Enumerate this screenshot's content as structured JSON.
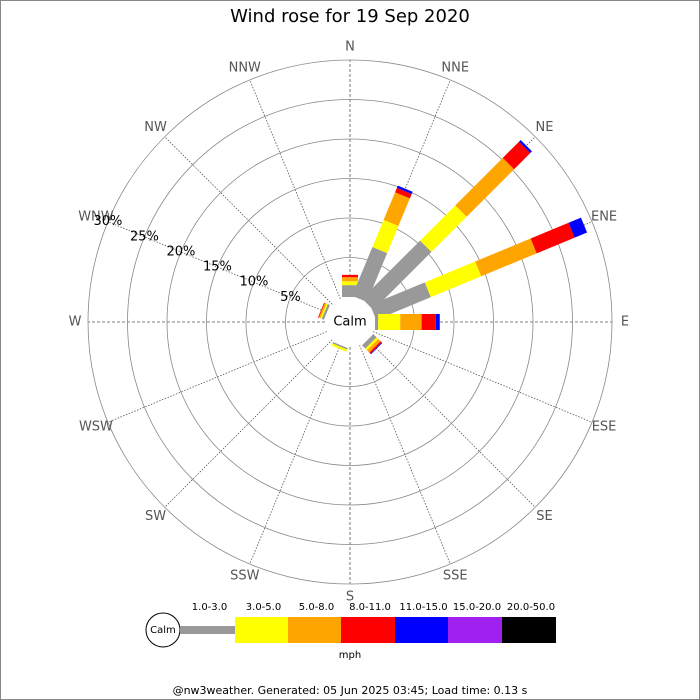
{
  "chart_data": {
    "type": "windrose",
    "title": "Wind rose for 19 Sep 2020",
    "categories": [
      "N",
      "NNE",
      "NE",
      "ENE",
      "E",
      "ESE",
      "SE",
      "SSE",
      "S",
      "SSW",
      "SW",
      "WSW",
      "W",
      "WNW",
      "NW",
      "NNW"
    ],
    "calm_label": "Calm",
    "unit": "mph",
    "footer": "@nw3weather. Generated: 05 Jun 2025 03:45; Load time: 0.13 s",
    "rlim": [
      0,
      30
    ],
    "rticks": [
      {
        "value": 5,
        "label": "5%"
      },
      {
        "value": 10,
        "label": "10%"
      },
      {
        "value": 15,
        "label": "15%"
      },
      {
        "value": 20,
        "label": "20%"
      },
      {
        "value": 25,
        "label": "25%"
      },
      {
        "value": 30,
        "label": "30%"
      }
    ],
    "series": [
      {
        "name": "1.0-3.0",
        "color": "#999999",
        "values": [
          1.5,
          6.7,
          10.4,
          7.5,
          0.4,
          0,
          0.6,
          0,
          0,
          0.2,
          0,
          0,
          0,
          0.3,
          0,
          0
        ]
      },
      {
        "name": "3.0-5.0",
        "color": "#ffff00",
        "values": [
          0.5,
          3.7,
          6.3,
          6.9,
          2.8,
          0,
          0.3,
          0,
          0,
          0.3,
          0,
          0,
          0,
          0.2,
          0,
          0
        ]
      },
      {
        "name": "5.0-8.0",
        "color": "#ffa500",
        "values": [
          0.5,
          3.8,
          8.5,
          7.6,
          2.7,
          0,
          0.4,
          0,
          0,
          0,
          0,
          0,
          0,
          0.2,
          0,
          0
        ]
      },
      {
        "name": "8.0-11.0",
        "color": "#ff0000",
        "values": [
          0.3,
          0.6,
          2.9,
          5.2,
          1.8,
          0,
          0.2,
          0,
          0,
          0,
          0,
          0,
          0,
          0.1,
          0,
          0
        ]
      },
      {
        "name": "11.0-15.0",
        "color": "#0000ff",
        "values": [
          0,
          0.3,
          0.3,
          1.7,
          0.5,
          0,
          0.1,
          0,
          0,
          0,
          0,
          0,
          0,
          0,
          0,
          0
        ]
      },
      {
        "name": "15.0-20.0",
        "color": "#a020f0",
        "values": [
          0,
          0,
          0,
          0,
          0,
          0,
          0,
          0,
          0,
          0,
          0,
          0,
          0,
          0,
          0,
          0
        ]
      },
      {
        "name": "20.0-50.0",
        "color": "#000000",
        "values": [
          0,
          0,
          0,
          0,
          0,
          0,
          0,
          0,
          0,
          0,
          0,
          0,
          0,
          0,
          0,
          0
        ]
      }
    ]
  }
}
